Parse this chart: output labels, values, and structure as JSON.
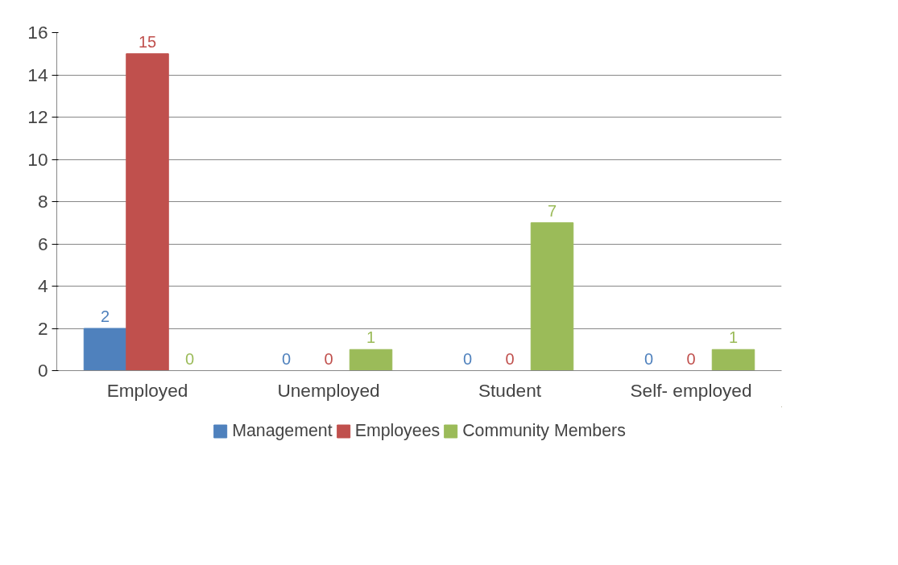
{
  "chart_data": {
    "type": "bar",
    "categories": [
      "Employed",
      "Unemployed",
      "Student",
      "Self- employed"
    ],
    "series": [
      {
        "name": "Management",
        "color": "#4f81bd",
        "values": [
          2,
          0,
          0,
          0
        ]
      },
      {
        "name": "Employees",
        "color": "#c0504d",
        "values": [
          15,
          0,
          0,
          0
        ]
      },
      {
        "name": "Community Members",
        "color": "#9bbb59",
        "values": [
          0,
          1,
          7,
          1
        ]
      }
    ],
    "ylim": [
      0,
      16
    ],
    "yticks": [
      0,
      2,
      4,
      6,
      8,
      10,
      12,
      14,
      16
    ],
    "grid": "y",
    "legend": "bottom",
    "data_labels": true
  }
}
